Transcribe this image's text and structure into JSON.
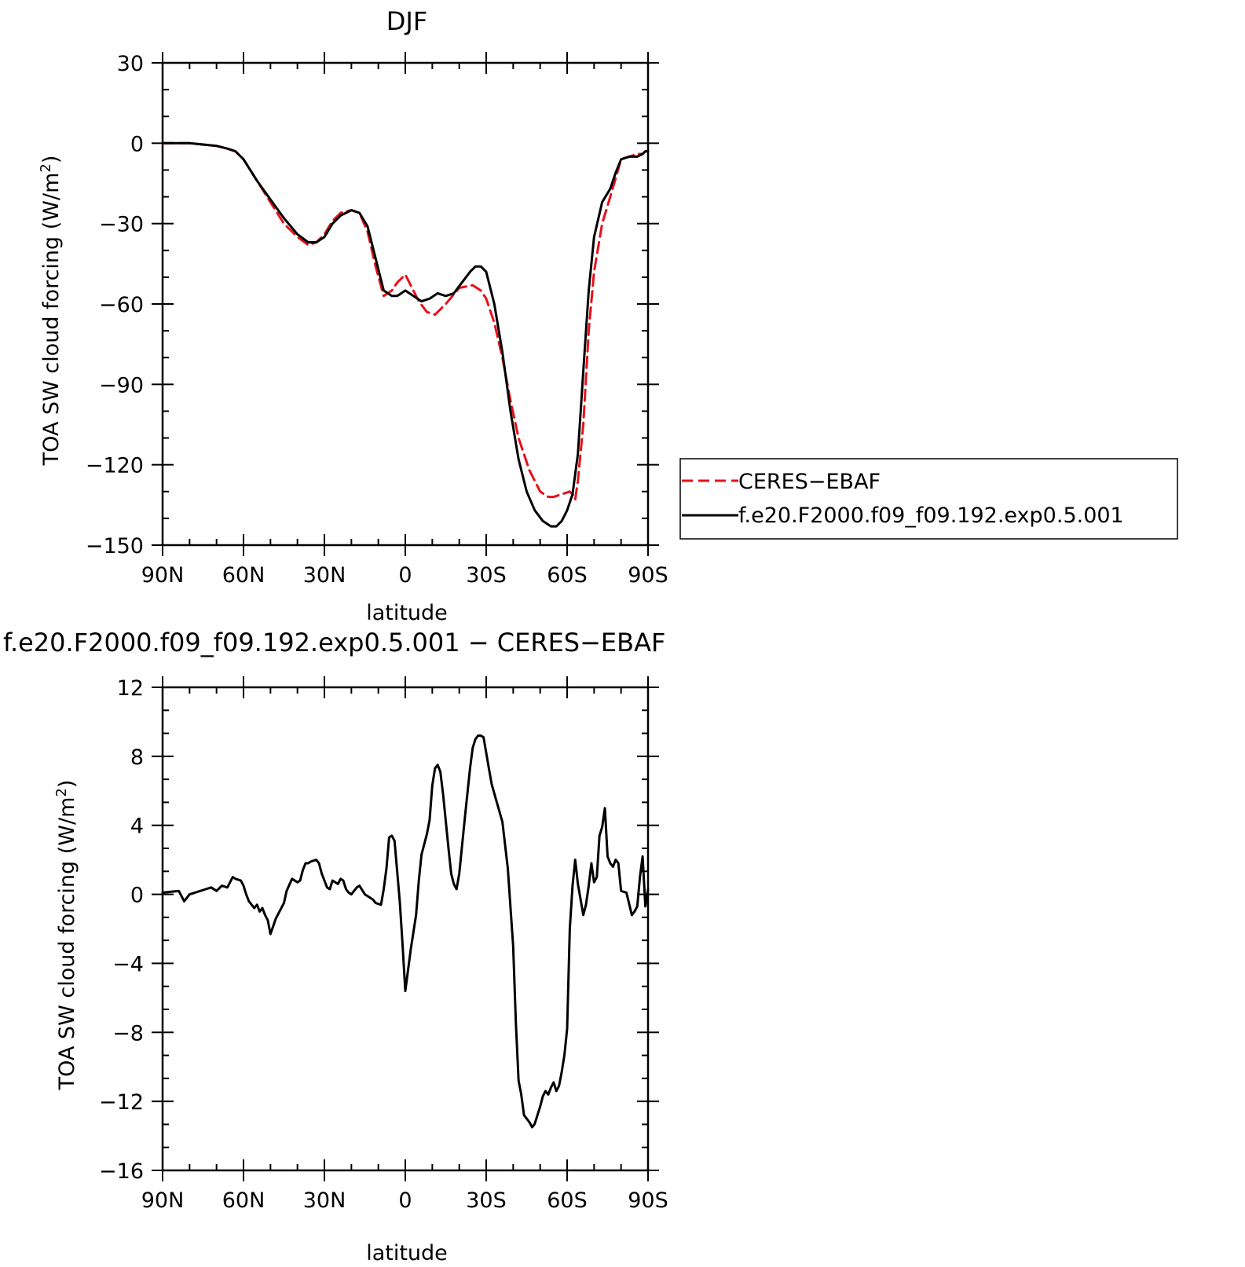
{
  "chart_data": [
    {
      "type": "line",
      "title": "DJF",
      "xlabel": "latitude",
      "ylabel": "TOA SW cloud forcing (W/m²)",
      "ylabel_main": "TOA SW cloud forcing (W/m",
      "ylabel_sup": "2",
      "ylabel_close": ")",
      "xlim": [
        90,
        -90
      ],
      "ylim": [
        -150,
        30
      ],
      "x_ticks": [
        90,
        60,
        30,
        0,
        -30,
        -60,
        -90
      ],
      "x_tick_labels": [
        "90N",
        "60N",
        "30N",
        "0",
        "30S",
        "60S",
        "90S"
      ],
      "y_ticks": [
        30,
        0,
        -30,
        -60,
        -90,
        -120,
        -150
      ],
      "y_tick_labels": [
        "30",
        "0",
        "−30",
        "−60",
        "−90",
        "−120",
        "−150"
      ],
      "legend_position": "right",
      "series": [
        {
          "name": "CERES−EBAF",
          "color": "#e8101a",
          "dash": "dashed",
          "x": [
            90,
            80,
            70,
            66,
            63,
            60,
            55,
            50,
            45,
            40,
            36,
            33,
            30,
            27,
            24,
            20,
            17,
            14,
            11,
            8,
            5,
            3,
            1,
            0,
            -1,
            -3,
            -5,
            -8,
            -11,
            -15,
            -20,
            -25,
            -28,
            -30,
            -33,
            -36,
            -39,
            -42,
            -46,
            -50,
            -53,
            -55,
            -58,
            -61,
            -62,
            -63,
            -64,
            -66,
            -68,
            -70,
            -73,
            -76,
            -78,
            -80,
            -83,
            -86,
            -88,
            -89,
            -90
          ],
          "y": [
            0,
            0,
            -1,
            -2,
            -3,
            -6,
            -14,
            -22,
            -30,
            -35,
            -38,
            -37,
            -34,
            -29,
            -26,
            -25,
            -26,
            -33,
            -46,
            -57,
            -55,
            -52,
            -50,
            -49,
            -51,
            -55,
            -59,
            -63,
            -64,
            -60,
            -54,
            -53,
            -55,
            -58,
            -67,
            -80,
            -96,
            -110,
            -122,
            -130,
            -132,
            -132,
            -131,
            -130,
            -131,
            -133,
            -126,
            -105,
            -70,
            -48,
            -30,
            -20,
            -13,
            -6,
            -5,
            -4,
            -4,
            -3,
            -3
          ]
        },
        {
          "name": "f.e20.F2000.f09_f09.192.exp0.5.001",
          "color": "#000000",
          "dash": "solid",
          "x": [
            90,
            80,
            70,
            66,
            63,
            60,
            55,
            50,
            45,
            40,
            36,
            33,
            30,
            27,
            24,
            20,
            17,
            14,
            11,
            8,
            5,
            3,
            0,
            -3,
            -6,
            -9,
            -12,
            -15,
            -18,
            -21,
            -24,
            -26,
            -28,
            -30,
            -33,
            -36,
            -39,
            -42,
            -45,
            -48,
            -51,
            -54,
            -56,
            -58,
            -60,
            -62,
            -64,
            -66,
            -68,
            -70,
            -73,
            -76,
            -78,
            -80,
            -83,
            -86,
            -88,
            -89,
            -90
          ],
          "y": [
            0,
            0,
            -1,
            -2,
            -3,
            -6,
            -14,
            -21,
            -28,
            -34,
            -37,
            -37,
            -35,
            -30,
            -27,
            -25,
            -26,
            -31,
            -43,
            -55,
            -57,
            -57,
            -55,
            -57,
            -59,
            -58,
            -56,
            -57,
            -56,
            -52,
            -48,
            -46,
            -46,
            -48,
            -60,
            -78,
            -100,
            -118,
            -130,
            -137,
            -141,
            -143,
            -143,
            -141,
            -137,
            -131,
            -116,
            -85,
            -55,
            -35,
            -22,
            -17,
            -11,
            -6,
            -5,
            -5,
            -4,
            -3,
            -3
          ]
        }
      ]
    },
    {
      "type": "line",
      "title": "f.e20.F2000.f09_f09.192.exp0.5.001 − CERES−EBAF",
      "xlabel": "latitude",
      "ylabel": "TOA SW cloud forcing (W/m²)",
      "ylabel_main": "TOA SW cloud forcing (W/m",
      "ylabel_sup": "2",
      "ylabel_close": ")",
      "xlim": [
        90,
        -90
      ],
      "ylim": [
        -16,
        12
      ],
      "x_ticks": [
        90,
        60,
        30,
        0,
        -30,
        -60,
        -90
      ],
      "x_tick_labels": [
        "90N",
        "60N",
        "30N",
        "0",
        "30S",
        "60S",
        "90S"
      ],
      "y_ticks": [
        12,
        8,
        4,
        0,
        -4,
        -8,
        -12,
        -16
      ],
      "y_tick_labels": [
        "12",
        "8",
        "4",
        "0",
        "−4",
        "−8",
        "−12",
        "−16"
      ],
      "series": [
        {
          "name": "f.e20.F2000.f09_f09.192.exp0.5.001 − CERES−EBAF",
          "color": "#000000",
          "dash": "solid",
          "x": [
            90,
            84,
            82,
            80,
            78,
            74,
            72,
            70,
            68,
            66,
            64,
            63,
            61,
            60,
            59,
            58,
            56,
            55,
            54,
            53,
            52,
            51,
            50,
            48,
            46,
            45,
            44,
            42,
            40,
            39,
            38,
            37,
            36,
            35,
            33,
            32,
            31,
            30,
            29,
            28,
            27,
            25,
            24,
            23,
            22,
            21,
            20,
            18,
            17,
            15,
            13,
            12,
            11,
            9,
            8,
            7,
            6,
            5,
            4,
            2,
            1,
            0,
            -2,
            -4,
            -5,
            -6,
            -8,
            -9,
            -10,
            -11,
            -12,
            -13,
            -14,
            -16,
            -17,
            -18,
            -19,
            -20,
            -22,
            -24,
            -25,
            -26,
            -27,
            -28,
            -29,
            -30,
            -31,
            -32,
            -34,
            -36,
            -38,
            -40,
            -41,
            -42,
            -43,
            -44,
            -46,
            -47,
            -48,
            -49,
            -50,
            -51,
            -52,
            -53,
            -54,
            -55,
            -56,
            -57,
            -58,
            -59,
            -60,
            -61,
            -62,
            -63,
            -64,
            -66,
            -67,
            -68,
            -69,
            -70,
            -71,
            -72,
            -73,
            -74,
            -75,
            -76,
            -77,
            -78,
            -79,
            -80,
            -82,
            -84,
            -85,
            -86,
            -87,
            -88,
            -89,
            -90
          ],
          "y": [
            0.1,
            0.2,
            -0.4,
            0.0,
            0.1,
            0.3,
            0.4,
            0.2,
            0.5,
            0.4,
            1.0,
            0.9,
            0.8,
            0.5,
            0.0,
            -0.4,
            -0.8,
            -0.6,
            -1.0,
            -0.8,
            -1.2,
            -1.5,
            -2.3,
            -1.4,
            -0.8,
            -0.5,
            0.2,
            0.9,
            0.7,
            0.8,
            1.4,
            1.8,
            1.8,
            1.9,
            2.0,
            1.8,
            1.2,
            0.8,
            0.4,
            0.3,
            0.8,
            0.6,
            0.9,
            0.8,
            0.3,
            0.1,
            0.0,
            0.4,
            0.5,
            0.0,
            -0.2,
            -0.3,
            -0.5,
            -0.6,
            0.3,
            1.5,
            3.3,
            3.4,
            3.1,
            -0.5,
            -3.0,
            -5.6,
            -3.2,
            -1.2,
            0.8,
            2.3,
            3.5,
            4.3,
            6.3,
            7.3,
            7.5,
            7.1,
            5.8,
            2.7,
            1.2,
            0.6,
            0.3,
            1.2,
            4.3,
            7.3,
            8.5,
            9.0,
            9.2,
            9.2,
            9.1,
            8.2,
            7.3,
            6.4,
            5.3,
            4.2,
            1.5,
            -3.0,
            -7.5,
            -10.8,
            -11.6,
            -12.8,
            -13.2,
            -13.5,
            -13.3,
            -12.8,
            -12.3,
            -11.7,
            -11.4,
            -11.6,
            -11.2,
            -10.9,
            -11.4,
            -11.1,
            -10.3,
            -9.3,
            -7.8,
            -2.0,
            0.5,
            2.0,
            0.6,
            -1.2,
            -0.6,
            0.5,
            1.8,
            0.7,
            1.0,
            3.4,
            3.9,
            5.0,
            2.2,
            1.8,
            1.6,
            2.0,
            1.8,
            0.2,
            0.1,
            -1.2,
            -1.0,
            -0.7,
            1.0,
            2.2,
            -0.7,
            0.3
          ]
        }
      ]
    }
  ]
}
